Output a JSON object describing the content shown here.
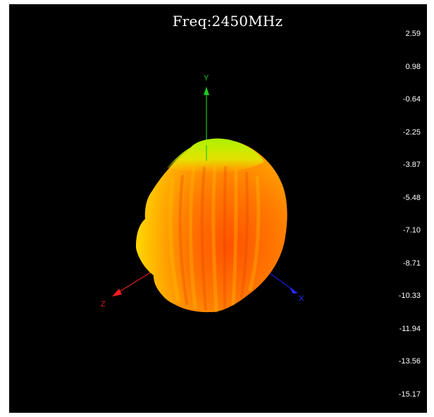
{
  "chart_data": {
    "type": "3d-radiation-pattern",
    "title": "Freq:2450MHz",
    "axes": [
      "Y",
      "Z",
      "X"
    ],
    "colorbar": {
      "ticks": [
        "2.59",
        "0.98",
        "-0.64",
        "-2.25",
        "-3.87",
        "-5.48",
        "-7.10",
        "-8.71",
        "-10.33",
        "-11.94",
        "-13.56",
        "-15.17"
      ],
      "range": [
        -15.17,
        2.59
      ],
      "colors": [
        "#ff0000",
        "#ff8000",
        "#ffff00",
        "#00ff00",
        "#00ffff",
        "#0000ff"
      ]
    }
  }
}
